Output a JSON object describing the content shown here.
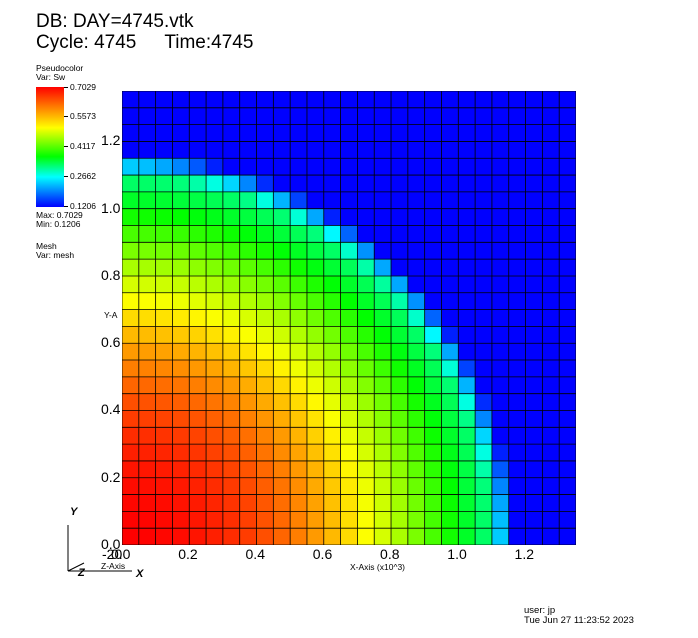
{
  "header": {
    "db_line": "DB: DAY=4745.vtk",
    "cycle_label": "Cycle: 4745",
    "time_label": "Time:4745"
  },
  "legend": {
    "plot_type": "Pseudocolor",
    "var_label": "Var: Sw",
    "ticks": [
      "0.7029",
      "0.5573",
      "0.4117",
      "0.2662",
      "0.1206"
    ],
    "max_label": "Max:  0.7029",
    "min_label": "Min:  0.1206",
    "mesh_title": "Mesh",
    "mesh_var": "Var: mesh",
    "colormap": [
      "#0000ff",
      "#00ffff",
      "#00ff00",
      "#ffff00",
      "#ff0000"
    ]
  },
  "axes": {
    "x_ticks": [
      "0.0",
      "0.2",
      "0.4",
      "0.6",
      "0.8",
      "1.0",
      "1.2"
    ],
    "y_ticks": [
      "0.0",
      "0.2",
      "0.4",
      "0.6",
      "0.8",
      "1.0",
      "1.2"
    ],
    "x_label": "X-Axis (x10^3)",
    "y_label": "Y-A",
    "z_label": "Z-Axis",
    "z_overlap_tick": "-20",
    "triad": {
      "x": "X",
      "y": "Y",
      "z": "Z"
    }
  },
  "footer": {
    "user": "user: jp",
    "timestamp": "Tue Jun 27 11:23:52 2023"
  },
  "chart_data": {
    "type": "heatmap",
    "variable": "Sw",
    "value_range": [
      0.1206,
      0.7029
    ],
    "grid": {
      "cols": 27,
      "rows": 27
    },
    "xlim": [
      0,
      1.35
    ],
    "ylim": [
      0,
      1.35
    ],
    "front_radius": 1.17
  }
}
